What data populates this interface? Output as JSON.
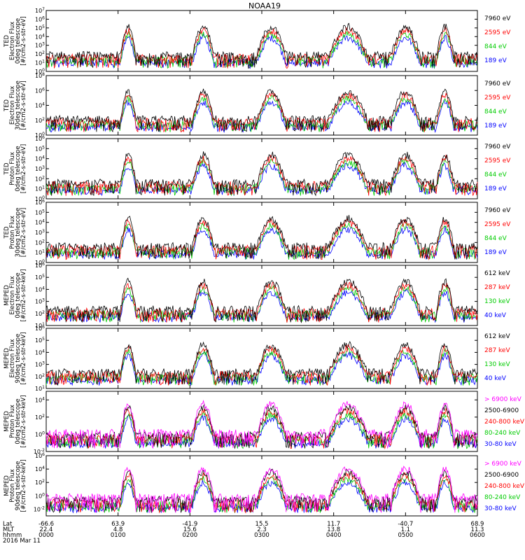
{
  "title": "NOAA19",
  "colors": {
    "black": "#000000",
    "red": "#ff0000",
    "green": "#00cc00",
    "blue": "#0000ff",
    "magenta": "#ff00ff"
  },
  "chart_data": {
    "type": "line",
    "x": {
      "time_ticks": [
        "0000",
        "0100",
        "0200",
        "0300",
        "0400",
        "0500",
        "0600"
      ],
      "lat_ticks": [
        "-66.6",
        "63.9",
        "-41.9",
        "15.5",
        "11.7",
        "-40.7",
        "68.9"
      ],
      "mlt_ticks": [
        "22.4",
        "4.8",
        "15.6",
        "2.3",
        "13.8",
        "1.1",
        "11.3"
      ],
      "row_labels": [
        "Lat",
        "MLT",
        "hhmm"
      ],
      "date": "2016 Mar 11"
    },
    "panels": [
      {
        "ylabel": [
          "TED",
          "Electron Flux",
          "0deg telescope",
          "[#/cm2-s-str-eV]"
        ],
        "yticks": [
          "10^7",
          "10^6",
          "10^5",
          "10^4",
          "10^3",
          "10^2",
          "10^1",
          "10^0"
        ],
        "ylog": [
          0,
          7
        ],
        "legend": [
          {
            "label": "7960 eV",
            "color": "black"
          },
          {
            "label": "2595 eV",
            "color": "red"
          },
          {
            "label": "844 eV",
            "color": "green"
          },
          {
            "label": "189 eV",
            "color": "blue"
          }
        ]
      },
      {
        "ylabel": [
          "TED",
          "Electron Flux",
          "30deg telescope",
          "[#/cm2-s-str-eV]"
        ],
        "yticks": [
          "10^8",
          "10^6",
          "10^4",
          "10^2",
          "10^0"
        ],
        "ylog": [
          0,
          8
        ],
        "legend": [
          {
            "label": "7960 eV",
            "color": "black"
          },
          {
            "label": "2595 eV",
            "color": "red"
          },
          {
            "label": "844 eV",
            "color": "green"
          },
          {
            "label": "189 eV",
            "color": "blue"
          }
        ]
      },
      {
        "ylabel": [
          "TED",
          "Proton Flux",
          "0deg telescope",
          "[#/cm2-s-str-eV]"
        ],
        "yticks": [
          "10^6",
          "10^5",
          "10^4",
          "10^3",
          "10^2",
          "10^1",
          "10^0"
        ],
        "ylog": [
          0,
          6
        ],
        "legend": [
          {
            "label": "7960 eV",
            "color": "black"
          },
          {
            "label": "2595 eV",
            "color": "red"
          },
          {
            "label": "844 eV",
            "color": "green"
          },
          {
            "label": "189 eV",
            "color": "blue"
          }
        ]
      },
      {
        "ylabel": [
          "TED",
          "Proton Flux",
          "30deg telescope",
          "[#/cm2-s-str-eV]"
        ],
        "yticks": [
          "10^6",
          "10^5",
          "10^4",
          "10^3",
          "10^2",
          "10^1",
          "10^0"
        ],
        "ylog": [
          0,
          6
        ],
        "legend": [
          {
            "label": "7960 eV",
            "color": "black"
          },
          {
            "label": "2595 eV",
            "color": "red"
          },
          {
            "label": "844 eV",
            "color": "green"
          },
          {
            "label": "189 eV",
            "color": "blue"
          }
        ]
      },
      {
        "ylabel": [
          "MEPED",
          "Electron Flux",
          "0deg telescope",
          "[#/cm2-s-str-keV]"
        ],
        "yticks": [
          "10^6",
          "10^5",
          "10^4",
          "10^3",
          "10^2",
          "10^1"
        ],
        "ylog": [
          1,
          6
        ],
        "legend": [
          {
            "label": "612 keV",
            "color": "black"
          },
          {
            "label": "287 keV",
            "color": "red"
          },
          {
            "label": "130 keV",
            "color": "green"
          },
          {
            "label": "40 keV",
            "color": "blue"
          }
        ]
      },
      {
        "ylabel": [
          "MEPED",
          "Electron Flux",
          "90deg telescope",
          "[#/cm2-s-str-keV]"
        ],
        "yticks": [
          "10^6",
          "10^5",
          "10^4",
          "10^3",
          "10^2",
          "10^1"
        ],
        "ylog": [
          1,
          6
        ],
        "legend": [
          {
            "label": "612 keV",
            "color": "black"
          },
          {
            "label": "287 keV",
            "color": "red"
          },
          {
            "label": "130 keV",
            "color": "green"
          },
          {
            "label": "40 keV",
            "color": "blue"
          }
        ]
      },
      {
        "ylabel": [
          "MEPED",
          "Proton Flux",
          "0deg telescope",
          "[#/cm2-s-str-keV]"
        ],
        "yticks": [
          "10^4",
          "10^2",
          "10^0",
          "10^-2"
        ],
        "ylog": [
          -2,
          5
        ],
        "legend": [
          {
            "label": "> 6900 keV",
            "color": "magenta"
          },
          {
            "label": "2500-6900",
            "color": "black"
          },
          {
            "label": "240-800 keV",
            "color": "red"
          },
          {
            "label": "80-240 keV",
            "color": "green"
          },
          {
            "label": "30-80 keV",
            "color": "blue"
          }
        ]
      },
      {
        "ylabel": [
          "MEPED",
          "Proton Flux",
          "90deg telescope",
          "[#/cm2-s-str-keV]"
        ],
        "yticks": [
          "10^6",
          "10^4",
          "10^2",
          "10^0",
          "10^-2"
        ],
        "ylog": [
          -3,
          6
        ],
        "legend": [
          {
            "label": "> 6900 keV",
            "color": "magenta"
          },
          {
            "label": "2500-6900",
            "color": "black"
          },
          {
            "label": "240-800 keV",
            "color": "red"
          },
          {
            "label": "80-240 keV",
            "color": "green"
          },
          {
            "label": "30-80 keV",
            "color": "blue"
          }
        ]
      }
    ],
    "xrange_minutes": [
      0,
      360
    ],
    "grid": false
  }
}
